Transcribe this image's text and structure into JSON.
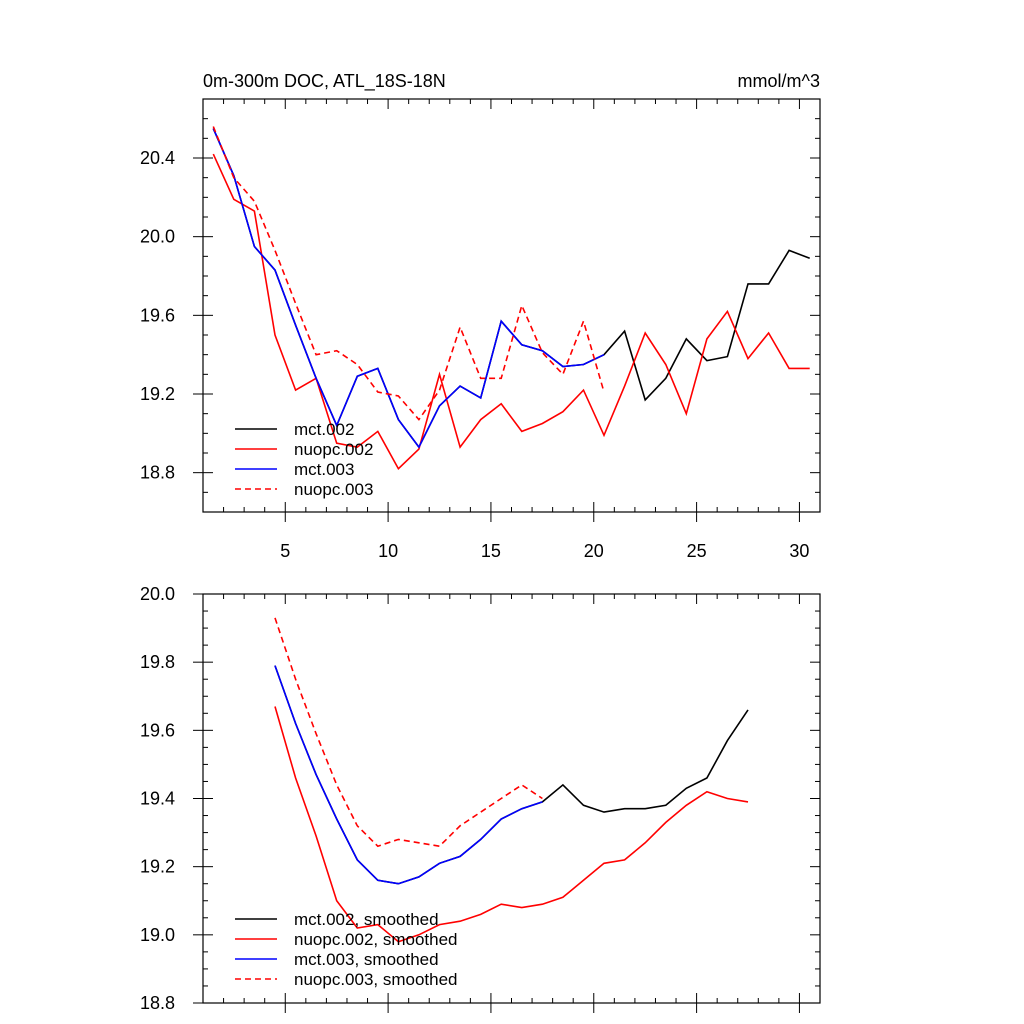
{
  "chart_data": [
    {
      "type": "line",
      "title": "0m-300m DOC, ATL_18S-18N",
      "units": "mmol/m^3",
      "xlim": [
        1,
        31
      ],
      "ylim": [
        18.6,
        20.7
      ],
      "xticks": [
        5,
        10,
        15,
        20,
        25,
        30
      ],
      "yticks": [
        18.8,
        19.2,
        19.6,
        20.0,
        20.4
      ],
      "ytick_labels": [
        "18.8",
        "19.2",
        "19.6",
        "20.0",
        "20.4"
      ],
      "legend_position": "lower-left",
      "series": [
        {
          "name": "mct.002",
          "color": "#000000",
          "dash": "solid",
          "x": [
            1.5,
            2.5,
            3.5,
            4.5,
            5.5,
            6.5,
            7.5,
            8.5,
            9.5,
            10.5,
            11.5,
            12.5,
            13.5,
            14.5,
            15.5,
            16.5,
            17.5,
            18.5,
            19.5,
            20.5,
            21.5,
            22.5,
            23.5,
            24.5,
            25.5,
            26.5,
            27.5,
            28.5,
            29.5,
            30.5
          ],
          "values": [
            20.55,
            20.31,
            19.95,
            19.83,
            19.55,
            19.28,
            19.04,
            19.29,
            19.33,
            19.07,
            18.93,
            19.14,
            19.24,
            19.18,
            19.57,
            19.45,
            19.42,
            19.34,
            19.35,
            19.4,
            19.52,
            19.17,
            19.28,
            19.48,
            19.37,
            19.39,
            19.76,
            19.76,
            19.93,
            19.89
          ]
        },
        {
          "name": "nuopc.002",
          "color": "#ff0000",
          "dash": "solid",
          "x": [
            1.5,
            2.5,
            3.5,
            4.5,
            5.5,
            6.5,
            7.5,
            8.5,
            9.5,
            10.5,
            11.5,
            12.5,
            13.5,
            14.5,
            15.5,
            16.5,
            17.5,
            18.5,
            19.5,
            20.5,
            21.5,
            22.5,
            23.5,
            24.5,
            25.5,
            26.5,
            27.5,
            28.5,
            29.5,
            30.5
          ],
          "values": [
            20.42,
            20.19,
            20.13,
            19.5,
            19.22,
            19.28,
            18.95,
            18.93,
            19.01,
            18.82,
            18.92,
            19.3,
            18.93,
            19.07,
            19.15,
            19.01,
            19.05,
            19.11,
            19.22,
            18.99,
            19.24,
            19.51,
            19.35,
            19.1,
            19.48,
            19.62,
            19.38,
            19.51,
            19.33,
            19.33
          ]
        },
        {
          "name": "mct.003",
          "color": "#0000ff",
          "dash": "solid",
          "x": [
            1.5,
            2.5,
            3.5,
            4.5,
            5.5,
            6.5,
            7.5,
            8.5,
            9.5,
            10.5,
            11.5,
            12.5,
            13.5,
            14.5,
            15.5,
            16.5,
            17.5,
            18.5,
            19.5,
            20.5
          ],
          "values": [
            20.55,
            20.31,
            19.95,
            19.83,
            19.55,
            19.28,
            19.04,
            19.29,
            19.33,
            19.07,
            18.93,
            19.14,
            19.24,
            19.18,
            19.57,
            19.45,
            19.42,
            19.34,
            19.35,
            19.4
          ]
        },
        {
          "name": "nuopc.003",
          "color": "#ff0000",
          "dash": "dashed",
          "x": [
            1.5,
            2.5,
            3.5,
            4.5,
            5.5,
            6.5,
            7.5,
            8.5,
            9.5,
            10.5,
            11.5,
            12.5,
            13.5,
            14.5,
            15.5,
            16.5,
            17.5,
            18.5,
            19.5,
            20.5
          ],
          "values": [
            20.56,
            20.3,
            20.18,
            19.93,
            19.66,
            19.4,
            19.42,
            19.35,
            19.21,
            19.19,
            19.07,
            19.22,
            19.54,
            19.28,
            19.28,
            19.65,
            19.41,
            19.3,
            19.57,
            19.21
          ]
        }
      ]
    },
    {
      "type": "line",
      "title": "",
      "xlim": [
        1,
        31
      ],
      "ylim": [
        18.8,
        20.0
      ],
      "xticks": [
        5,
        10,
        15,
        20,
        25,
        30
      ],
      "yticks": [
        18.8,
        19.0,
        19.2,
        19.4,
        19.6,
        19.8,
        20.0
      ],
      "ytick_labels": [
        "18.8",
        "19.0",
        "19.2",
        "19.4",
        "19.6",
        "19.8",
        "20.0"
      ],
      "legend_position": "lower-left",
      "series": [
        {
          "name": "mct.002, smoothed",
          "color": "#000000",
          "dash": "solid",
          "x": [
            4.5,
            5.5,
            6.5,
            7.5,
            8.5,
            9.5,
            10.5,
            11.5,
            12.5,
            13.5,
            14.5,
            15.5,
            16.5,
            17.5,
            18.5,
            19.5,
            20.5,
            21.5,
            22.5,
            23.5,
            24.5,
            25.5,
            26.5,
            27.5
          ],
          "values": [
            19.79,
            19.62,
            19.47,
            19.34,
            19.22,
            19.16,
            19.15,
            19.17,
            19.21,
            19.23,
            19.28,
            19.34,
            19.37,
            19.39,
            19.44,
            19.38,
            19.36,
            19.37,
            19.37,
            19.38,
            19.43,
            19.46,
            19.57,
            19.66
          ]
        },
        {
          "name": "nuopc.002, smoothed",
          "color": "#ff0000",
          "dash": "solid",
          "x": [
            4.5,
            5.5,
            6.5,
            7.5,
            8.5,
            9.5,
            10.5,
            11.5,
            12.5,
            13.5,
            14.5,
            15.5,
            16.5,
            17.5,
            18.5,
            19.5,
            20.5,
            21.5,
            22.5,
            23.5,
            24.5,
            25.5,
            26.5,
            27.5
          ],
          "values": [
            19.67,
            19.46,
            19.29,
            19.1,
            19.02,
            19.03,
            18.98,
            19.0,
            19.03,
            19.04,
            19.06,
            19.09,
            19.08,
            19.09,
            19.11,
            19.16,
            19.21,
            19.22,
            19.27,
            19.33,
            19.38,
            19.42,
            19.4,
            19.39
          ]
        },
        {
          "name": "mct.003, smoothed",
          "color": "#0000ff",
          "dash": "solid",
          "x": [
            4.5,
            5.5,
            6.5,
            7.5,
            8.5,
            9.5,
            10.5,
            11.5,
            12.5,
            13.5,
            14.5,
            15.5,
            16.5,
            17.5
          ],
          "values": [
            19.79,
            19.62,
            19.47,
            19.34,
            19.22,
            19.16,
            19.15,
            19.17,
            19.21,
            19.23,
            19.28,
            19.34,
            19.37,
            19.39
          ]
        },
        {
          "name": "nuopc.003, smoothed",
          "color": "#ff0000",
          "dash": "dashed",
          "x": [
            4.5,
            5.5,
            6.5,
            7.5,
            8.5,
            9.5,
            10.5,
            11.5,
            12.5,
            13.5,
            14.5,
            15.5,
            16.5,
            17.5
          ],
          "values": [
            19.93,
            19.75,
            19.59,
            19.44,
            19.32,
            19.26,
            19.28,
            19.27,
            19.26,
            19.32,
            19.36,
            19.4,
            19.44,
            19.4
          ]
        }
      ]
    }
  ]
}
